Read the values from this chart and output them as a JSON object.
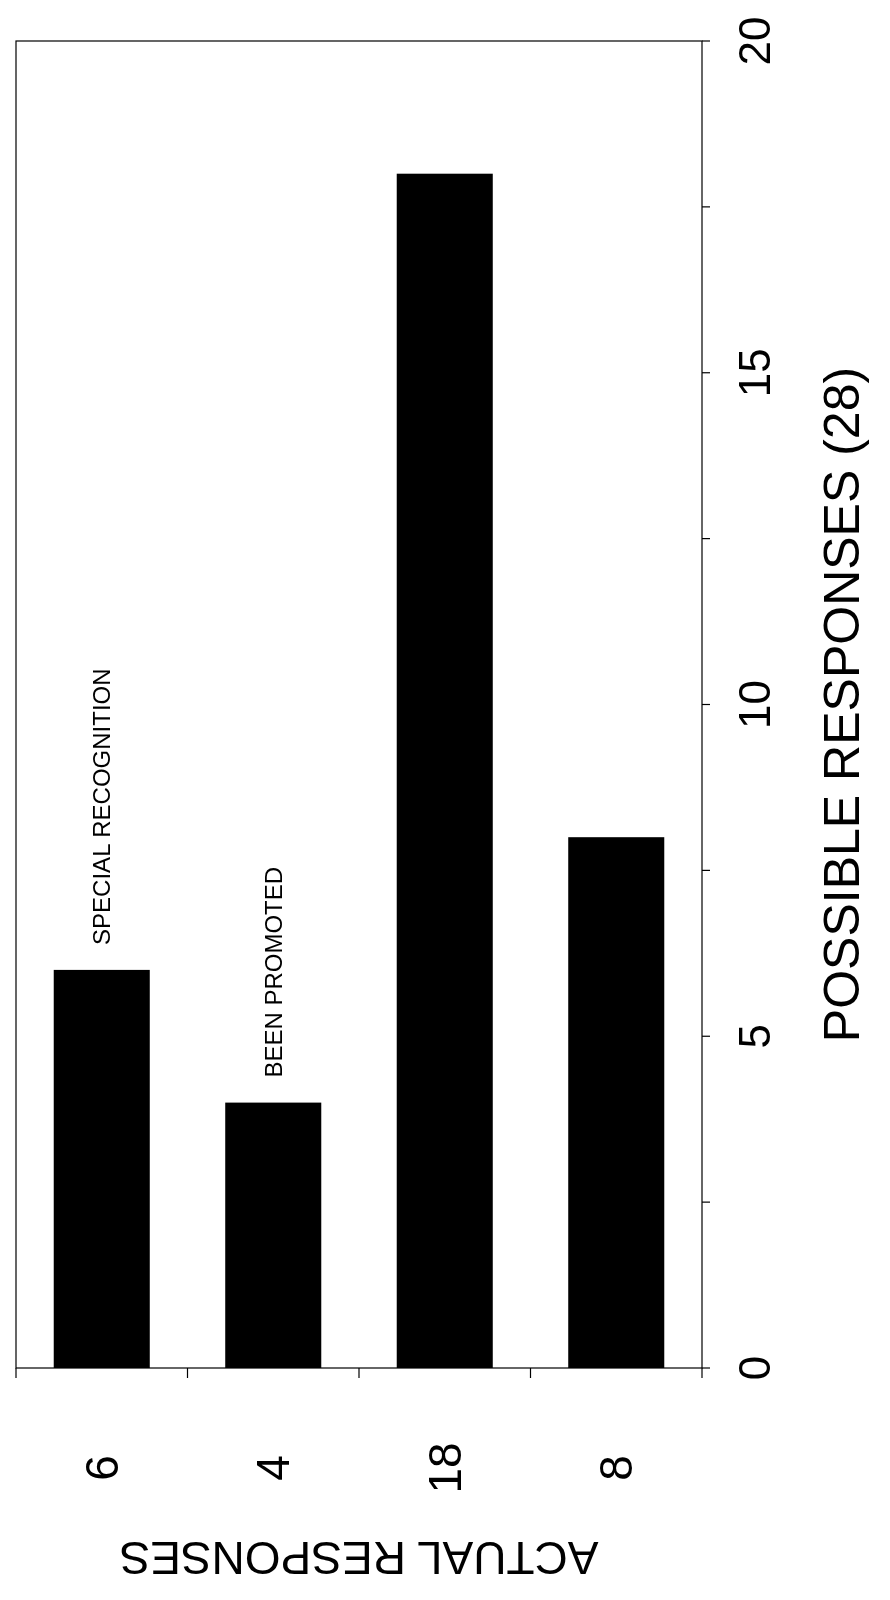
{
  "chart_data": {
    "type": "bar",
    "categories": [
      "6",
      "4",
      "18",
      "8"
    ],
    "values": [
      6,
      4,
      18,
      8
    ],
    "color": "#000000",
    "xlabel": "ACTUAL RESPONSES",
    "ylabel": "POSSIBLE RESPONSES (28)",
    "ylim": [
      0,
      20
    ],
    "yticks": [
      0,
      {
        "value": 2.5,
        "label": null
      },
      5,
      {
        "value": 7.5,
        "label": null
      },
      10,
      {
        "value": 12.5,
        "label": null
      },
      15,
      {
        "value": 17.5,
        "label": null
      },
      20
    ],
    "annotations": [
      {
        "text": "SPECIAL RECOGNITION",
        "x": "6",
        "y": 6
      },
      {
        "text": "BEEN PROMOTED",
        "x": "4",
        "y": 4
      }
    ],
    "grid": false
  }
}
